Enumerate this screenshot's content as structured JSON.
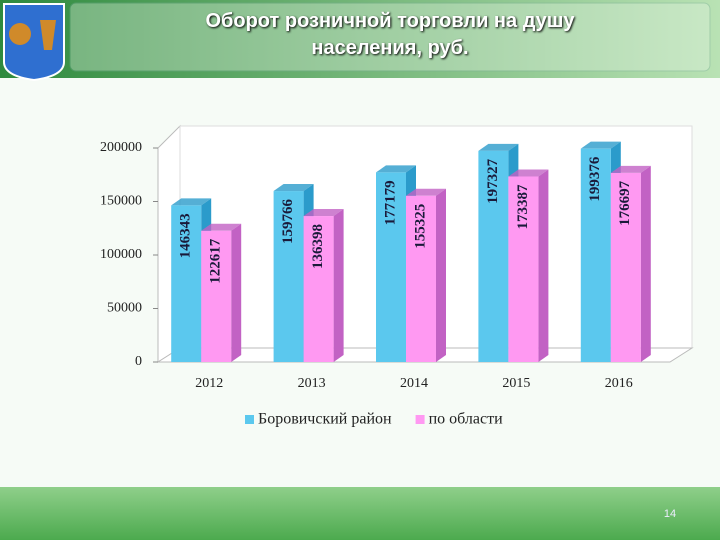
{
  "slide_number": "14",
  "chart_data": {
    "type": "bar3d",
    "title": "Оборот розничной торговли на душу населения, руб.",
    "categories": [
      "2012",
      "2013",
      "2014",
      "2015",
      "2016"
    ],
    "series": [
      {
        "name": "Боровичский район",
        "color": "#5bc8ee",
        "side": "#2b9bcb",
        "values": [
          146343,
          159766,
          177179,
          197327,
          199376
        ]
      },
      {
        "name": "по области",
        "color": "#ff99f2",
        "side": "#c262c4",
        "values": [
          122617,
          136398,
          155325,
          173387,
          176697
        ]
      }
    ],
    "ylim": [
      0,
      200000
    ],
    "yticks": [
      0,
      50000,
      100000,
      150000,
      200000
    ],
    "grid": false,
    "legend": "bottom"
  }
}
